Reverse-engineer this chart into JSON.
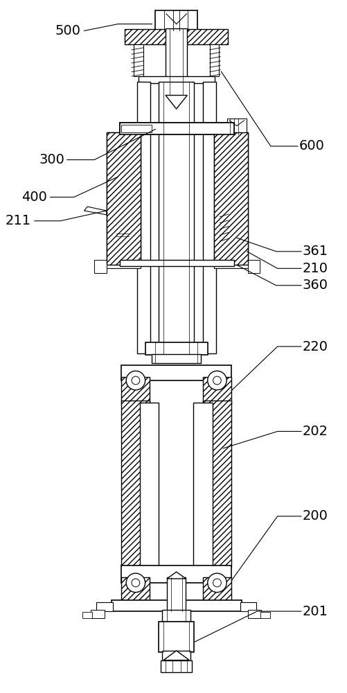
{
  "bg_color": "#ffffff",
  "lc": "#000000",
  "lw": 1.0,
  "label_fontsize": 14
}
